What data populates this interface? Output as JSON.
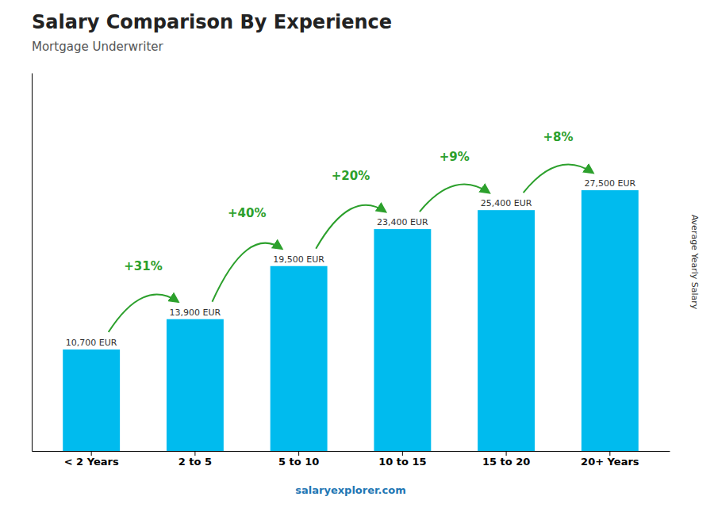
{
  "chart_data": {
    "type": "bar",
    "title": "Salary Comparison By Experience",
    "subtitle": "Mortgage Underwriter",
    "ylabel": "Average Yearly Salary",
    "watermark": "salaryexplorer.com",
    "categories": [
      "< 2 Years",
      "2 to 5",
      "5 to 10",
      "10 to 15",
      "15 to 20",
      "20+ Years"
    ],
    "values": [
      10700,
      13900,
      19500,
      23400,
      25400,
      27500
    ],
    "value_labels": [
      "10,700 EUR",
      "13,900 EUR",
      "19,500 EUR",
      "23,400 EUR",
      "25,400 EUR",
      "27,500 EUR"
    ],
    "annotations": [
      "+31%",
      "+40%",
      "+20%",
      "+9%",
      "+8%"
    ],
    "color": "#00bbee",
    "ylim": [
      0,
      39875
    ],
    "tick_labels": "x",
    "data_labels": true,
    "grid": false
  }
}
